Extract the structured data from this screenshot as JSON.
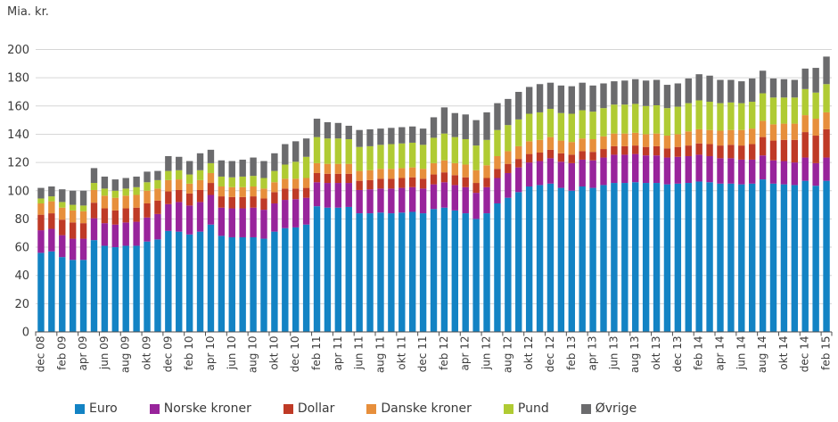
{
  "chart_data": {
    "type": "bar",
    "stacked": true,
    "title": "Mia. kr.",
    "ylabel": "Mia. kr.",
    "xlabel": "",
    "ylim": [
      0,
      200
    ],
    "ytick_step": 20,
    "grid": true,
    "legend_position": "bottom",
    "xtick_interval": 2,
    "visible_xtick_labels": [
      "dec 08",
      "feb 09",
      "apr 09",
      "jun 09",
      "aug 09",
      "okt 09",
      "dec 09",
      "feb 10",
      "apr 10",
      "jun 10",
      "aug 10",
      "okt 10",
      "dec 10",
      "feb 11",
      "apr 11",
      "jun 11",
      "aug 11",
      "okt 11",
      "dec 11",
      "feb 12",
      "apr 12",
      "jun 12",
      "aug 12",
      "okt 12",
      "dec 12",
      "feb 13",
      "apr 13",
      "jun 13",
      "aug 13",
      "okt 13",
      "dec 13",
      "feb 14",
      "apr 14",
      "jun 14",
      "aug 14",
      "okt 14",
      "dec 14",
      "feb 15"
    ],
    "categories": [
      "dec 08",
      "jan 09",
      "feb 09",
      "mar 09",
      "apr 09",
      "maj 09",
      "jun 09",
      "jul 09",
      "aug 09",
      "sep 09",
      "okt 09",
      "nov 09",
      "dec 09",
      "jan 10",
      "feb 10",
      "mar 10",
      "apr 10",
      "maj 10",
      "jun 10",
      "jul 10",
      "aug 10",
      "sep 10",
      "okt 10",
      "nov 10",
      "dec 10",
      "jan 11",
      "feb 11",
      "mar 11",
      "apr 11",
      "maj 11",
      "jun 11",
      "jul 11",
      "aug 11",
      "sep 11",
      "okt 11",
      "nov 11",
      "dec 11",
      "jan 12",
      "feb 12",
      "mar 12",
      "apr 12",
      "maj 12",
      "jun 12",
      "jul 12",
      "aug 12",
      "sep 12",
      "okt 12",
      "nov 12",
      "dec 12",
      "jan 13",
      "feb 13",
      "mar 13",
      "apr 13",
      "maj 13",
      "jun 13",
      "jul 13",
      "aug 13",
      "sep 13",
      "okt 13",
      "nov 13",
      "dec 13",
      "jan 14",
      "feb 14",
      "mar 14",
      "apr 14",
      "maj 14",
      "jun 14",
      "jul 14",
      "aug 14",
      "sep 14",
      "okt 14",
      "nov 14",
      "dec 14",
      "jan 15",
      "feb 15"
    ],
    "series": [
      {
        "name": "Euro",
        "color": "#1383c4",
        "values": [
          56,
          57,
          53,
          51,
          51,
          65,
          61,
          60,
          61,
          61,
          64,
          65.5,
          71.5,
          71,
          69,
          71,
          76,
          68,
          67,
          67,
          67,
          66,
          71,
          73.5,
          74,
          76,
          89,
          88,
          88,
          88.5,
          84,
          84,
          84.5,
          84,
          84.5,
          85,
          84,
          87,
          88,
          86,
          84,
          80,
          84,
          91,
          95,
          99,
          103,
          104,
          105,
          102,
          100,
          103,
          102,
          104,
          105.5,
          105.5,
          106,
          105.5,
          105.5,
          104.5,
          105,
          105.5,
          106.5,
          106,
          105,
          105,
          104.5,
          105,
          108,
          105,
          104.5,
          104,
          107,
          103.5,
          107
        ]
      },
      {
        "name": "Norske kroner",
        "color": "#98249b",
        "values": [
          16,
          16,
          15.5,
          15,
          15,
          15.5,
          16,
          16,
          16.5,
          17,
          17,
          18,
          19,
          21,
          20.5,
          21,
          21,
          20,
          20.5,
          20.5,
          21,
          20.5,
          20,
          20,
          20,
          19,
          17,
          17.5,
          17.5,
          17,
          16.5,
          17,
          17,
          17.5,
          17.5,
          17.5,
          17.5,
          17.5,
          18,
          18,
          18.5,
          18.5,
          18.5,
          18,
          17.5,
          17.5,
          17,
          17,
          18,
          18.5,
          19.5,
          19,
          19.5,
          19.5,
          20,
          20,
          20,
          19.5,
          19.5,
          19,
          19,
          19,
          19,
          18.5,
          18,
          18,
          17.5,
          17,
          17,
          16.5,
          16.5,
          16,
          16.5,
          16,
          16.5
        ]
      },
      {
        "name": "Dollar",
        "color": "#bf3a26",
        "values": [
          11,
          11,
          11,
          11.5,
          11,
          11,
          10.5,
          10,
          10,
          10,
          10,
          9.5,
          9,
          8.5,
          8.5,
          8.5,
          8.5,
          8,
          8,
          8,
          8,
          8,
          8,
          8,
          7.5,
          7,
          6.5,
          6.5,
          6.5,
          6.5,
          6.5,
          6.5,
          7,
          7,
          7,
          7,
          7,
          7,
          7,
          7,
          7,
          7,
          6.5,
          6.5,
          6.5,
          6,
          6,
          6,
          6,
          6,
          6,
          6,
          6,
          6,
          6,
          6,
          6,
          6,
          6.5,
          6.5,
          7,
          7.5,
          8,
          8.5,
          9,
          9.5,
          10,
          11,
          13,
          14,
          15,
          16,
          18,
          19.5,
          20
        ]
      },
      {
        "name": "Danske kroner",
        "color": "#e78f3c",
        "values": [
          8,
          8.5,
          8.5,
          8.5,
          8.5,
          9,
          9,
          9,
          9,
          9,
          9,
          8.5,
          8,
          7.5,
          7,
          7,
          7,
          7,
          7,
          7,
          7,
          7,
          7,
          7,
          7,
          7,
          7,
          7,
          7,
          7,
          7,
          7,
          7,
          7,
          7,
          7,
          7,
          8,
          8.5,
          8.5,
          9,
          9,
          9,
          9,
          9,
          9,
          9,
          9,
          9,
          9,
          9,
          9,
          9,
          9,
          9,
          9,
          9,
          9,
          9,
          9,
          9,
          10,
          10,
          10,
          10.5,
          10.5,
          11,
          11,
          11.5,
          11.5,
          11.5,
          11.5,
          12,
          12,
          12
        ]
      },
      {
        "name": "Pund",
        "color": "#b0cb33",
        "values": [
          3.5,
          3.5,
          4,
          4,
          4,
          5,
          5,
          5,
          5,
          5.5,
          6,
          6,
          6.5,
          6.5,
          6.5,
          7,
          7,
          7,
          7,
          7.5,
          7.5,
          7.5,
          8,
          10,
          12,
          15,
          18.5,
          18,
          18,
          17.5,
          17,
          17,
          17,
          17.5,
          17.5,
          17.5,
          17,
          18,
          19,
          18.5,
          18,
          17.5,
          18,
          18.5,
          18.5,
          19,
          19.5,
          19.5,
          20,
          19.5,
          20,
          20,
          19.5,
          20,
          20.5,
          20.5,
          20.5,
          20,
          20,
          19.5,
          19.5,
          20,
          20.5,
          20,
          19.5,
          19.5,
          19,
          19,
          19.5,
          19,
          18.5,
          18.5,
          18.5,
          18.5,
          20
        ]
      },
      {
        "name": "Øvrige",
        "color": "#6b6b6d",
        "values": [
          7.5,
          7,
          9,
          10,
          10.5,
          10.5,
          8.5,
          8,
          7.5,
          7.5,
          7.5,
          6.5,
          10.5,
          9.5,
          9.5,
          12,
          9.5,
          11.5,
          11.5,
          12,
          13,
          12,
          12.5,
          14.5,
          14.5,
          13,
          13,
          11.5,
          11,
          9.5,
          12,
          12,
          11.5,
          11.5,
          11.5,
          11.5,
          11.5,
          14.5,
          18.5,
          17,
          17.5,
          18,
          19.5,
          19,
          18.5,
          19.5,
          19,
          20,
          18.5,
          19.5,
          19.5,
          19.5,
          18.5,
          17.5,
          16.5,
          17,
          17.5,
          18,
          18,
          16.5,
          16.5,
          17.5,
          18.5,
          18.5,
          16.5,
          16,
          15.5,
          16.5,
          16,
          13.5,
          13,
          12.5,
          14.5,
          17.5,
          19.5
        ]
      }
    ]
  },
  "style_colors": {
    "grid": "#d6d6d6",
    "axis": "#4d4d4d",
    "text": "#3b3b3b"
  }
}
